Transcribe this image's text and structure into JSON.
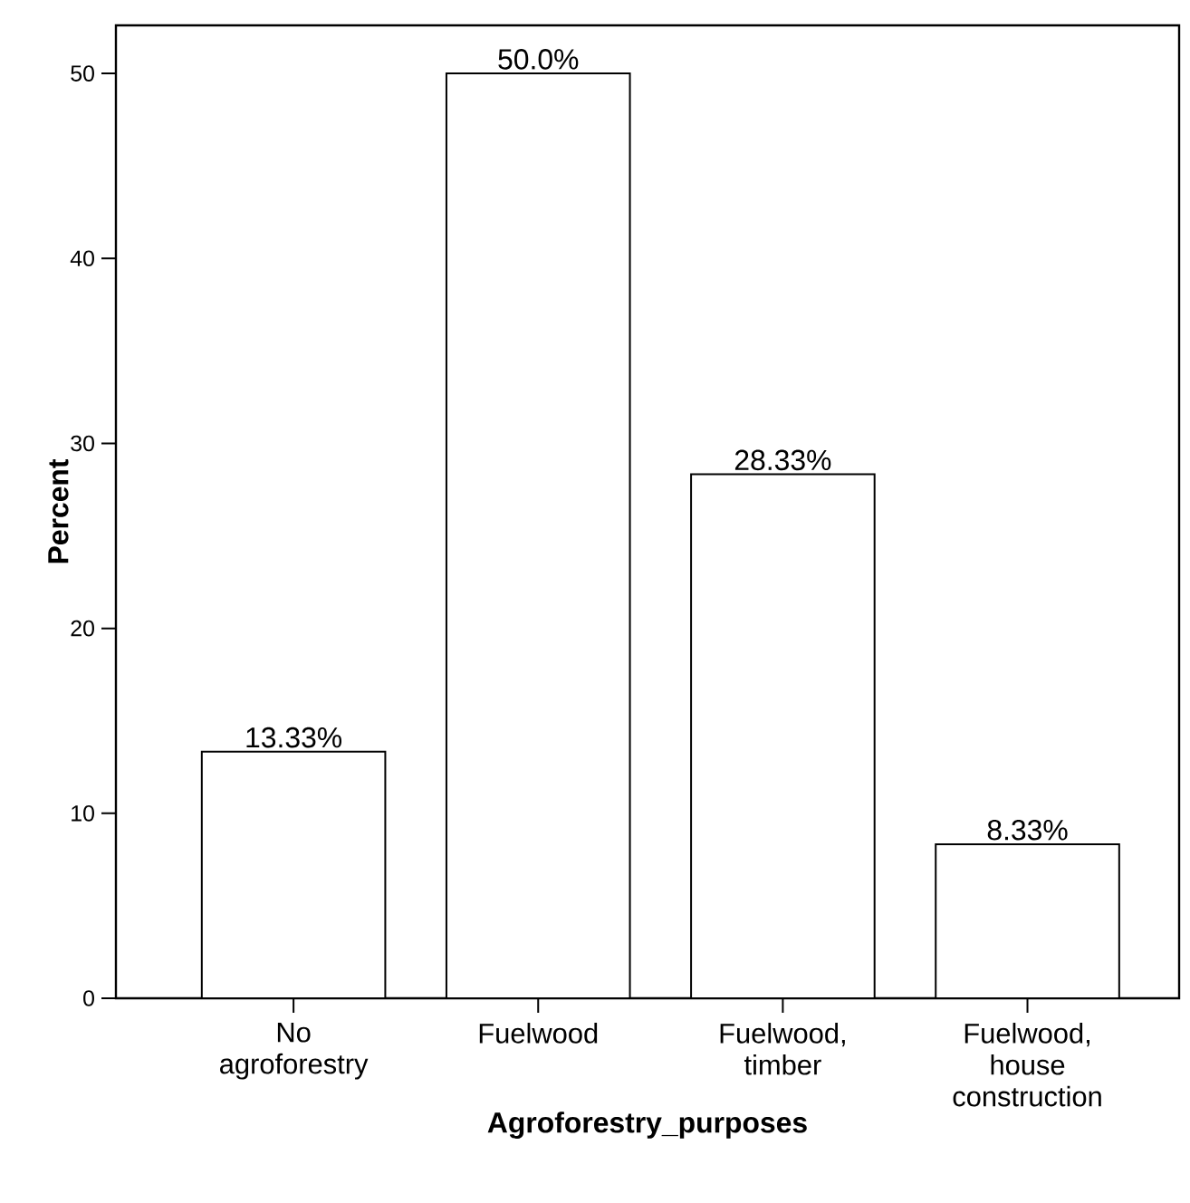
{
  "chart_data": {
    "type": "bar",
    "categories": [
      "No agroforestry",
      "Fuelwood",
      "Fuelwood, timber",
      "Fuelwood, house construction"
    ],
    "values": [
      13.33,
      50.0,
      28.33,
      8.33
    ],
    "value_labels": [
      "13.33%",
      "50.0%",
      "28.33%",
      "8.33%"
    ],
    "color": "#ffffff",
    "xlabel": "Agroforestry_purposes",
    "ylabel": "Percent",
    "ylim": [
      0,
      52.6
    ],
    "yticks": [
      0,
      10,
      20,
      30,
      40,
      50
    ],
    "grid": false
  }
}
